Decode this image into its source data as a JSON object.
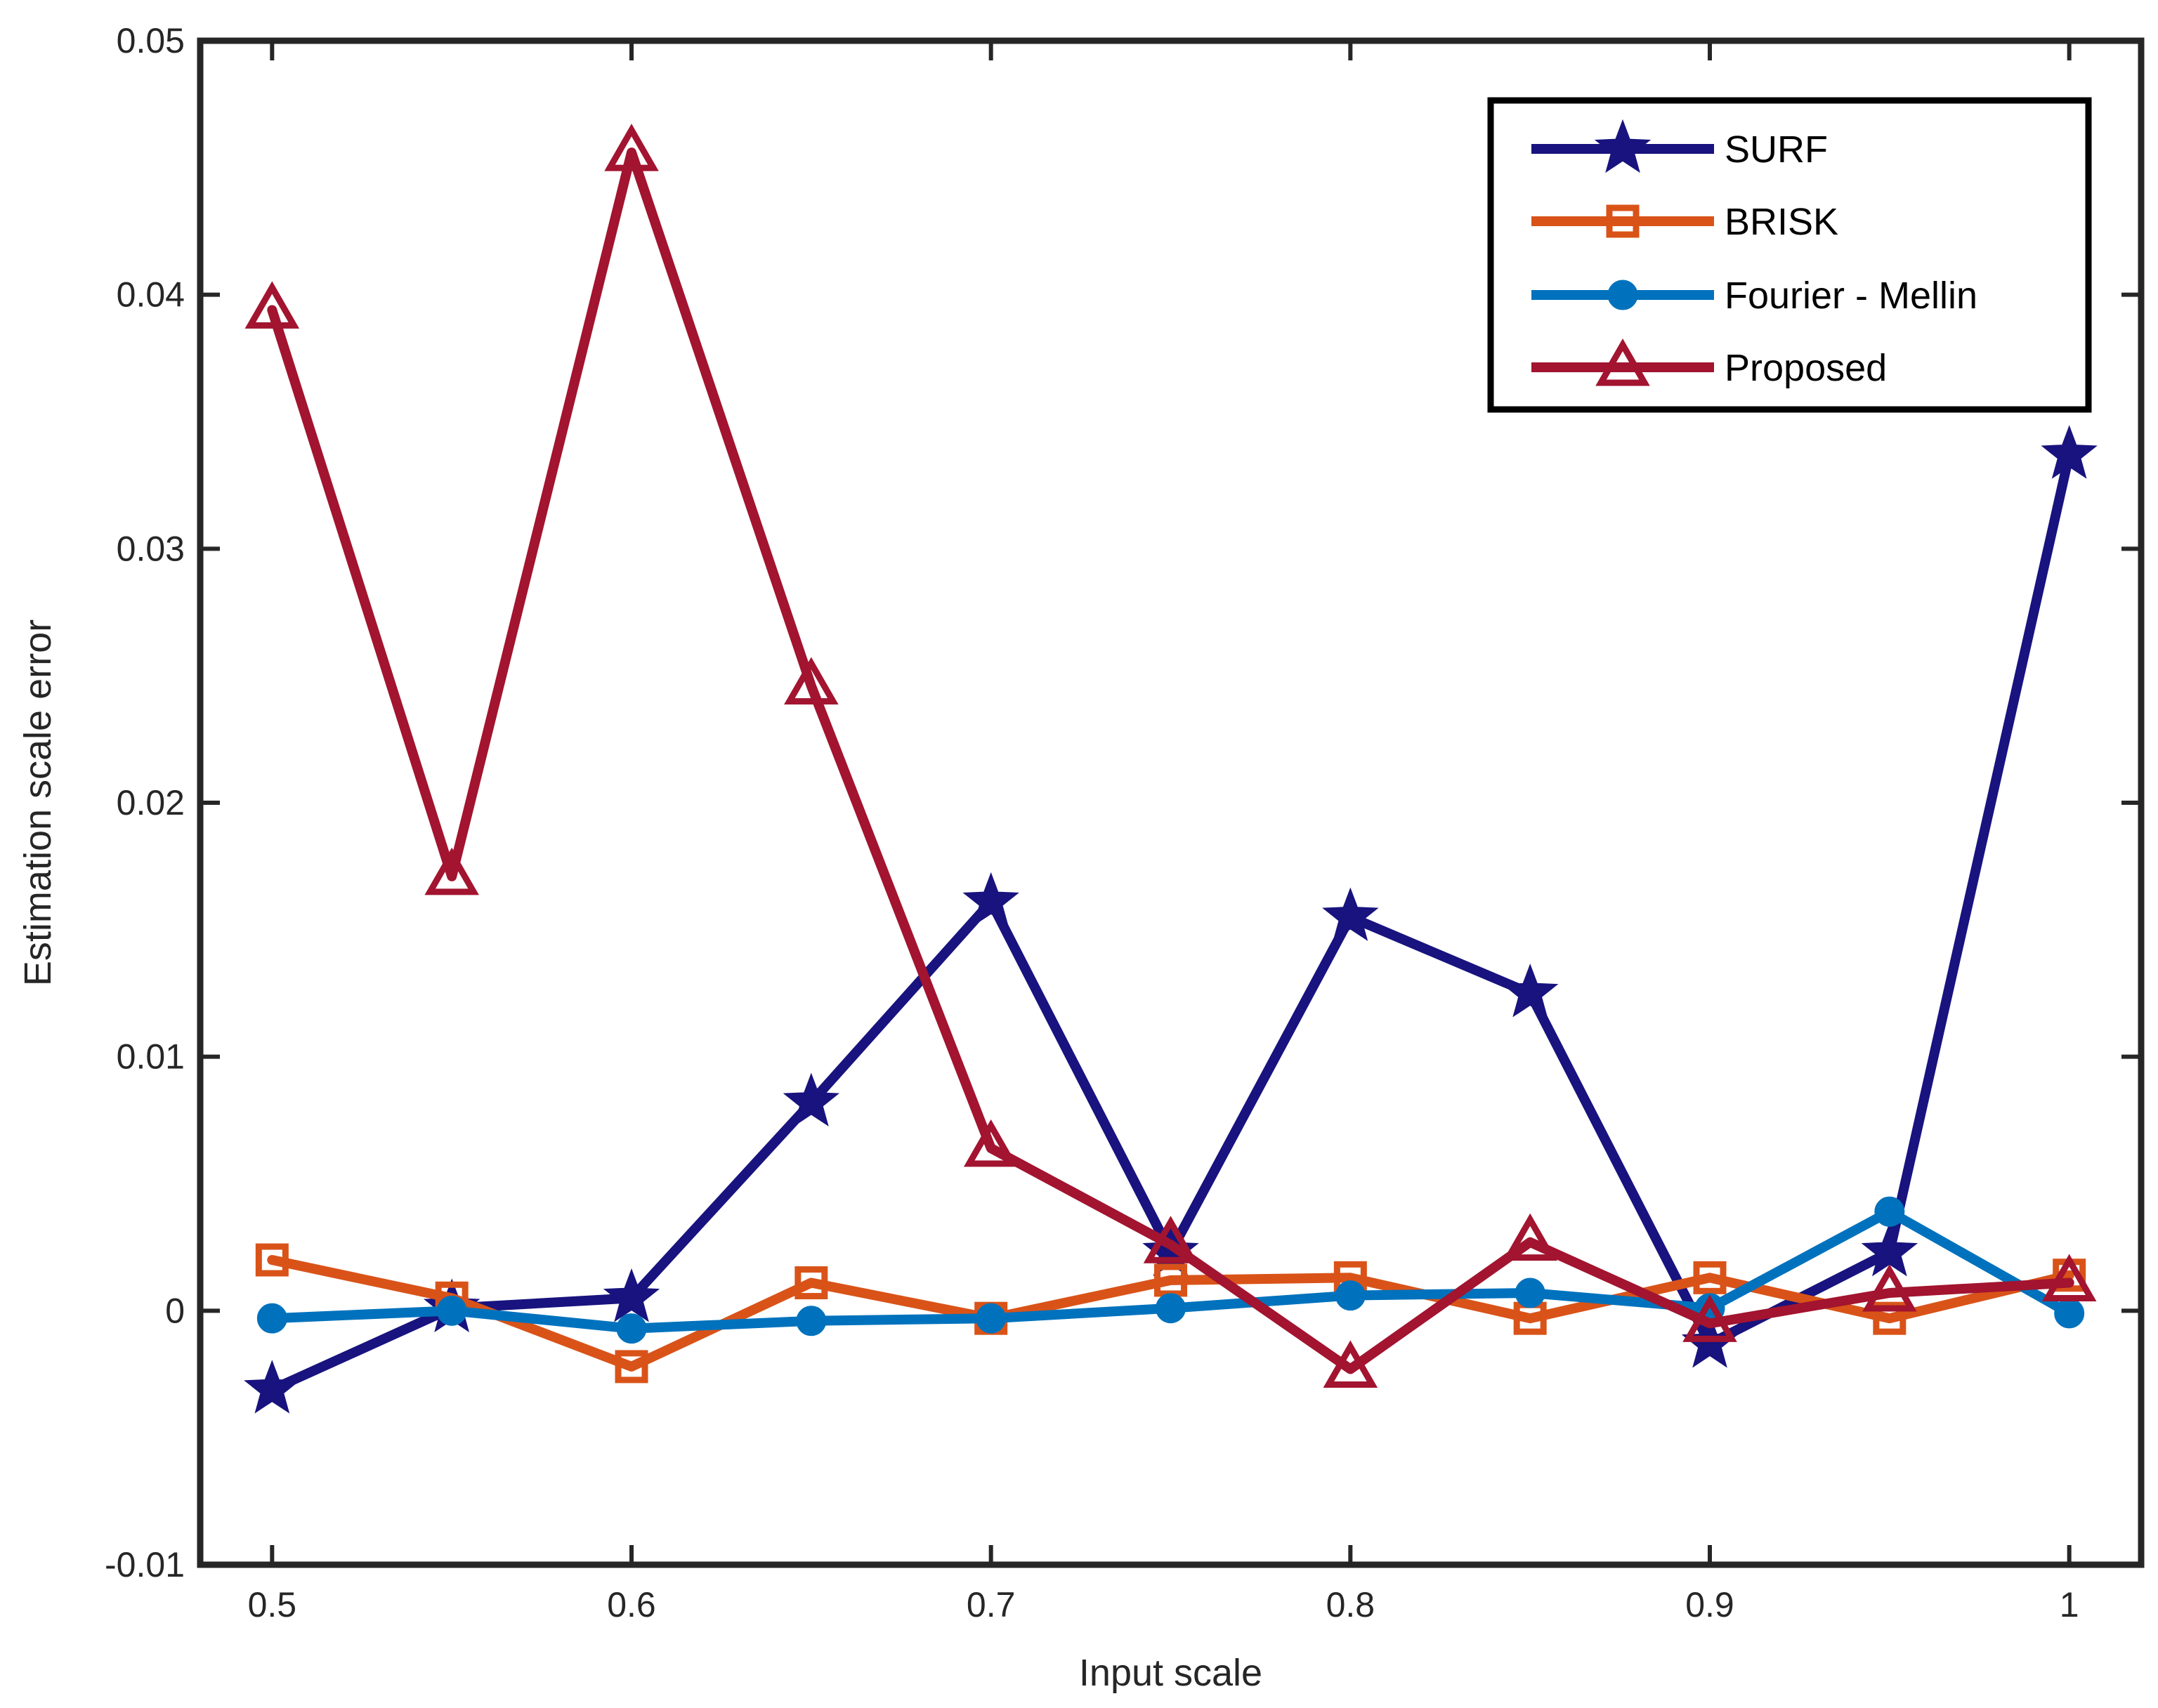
{
  "chart_data": {
    "type": "line",
    "title": "",
    "xlabel": "Input scale",
    "ylabel": "Estimation scale error",
    "xlim": [
      0.48,
      1.02
    ],
    "ylim": [
      -0.01,
      0.05
    ],
    "xticks": [
      0.5,
      0.6,
      0.7,
      0.8,
      0.9,
      1.0
    ],
    "xtick_labels": [
      "0.5",
      "0.6",
      "0.7",
      "0.8",
      "0.9",
      "1"
    ],
    "yticks": [
      -0.01,
      0,
      0.01,
      0.02,
      0.03,
      0.04,
      0.05
    ],
    "ytick_labels": [
      "-0.01",
      "0",
      "0.01",
      "0.02",
      "0.03",
      "0.04",
      "0.05"
    ],
    "grid": false,
    "legend_position": "top-right",
    "x": [
      0.5,
      0.55,
      0.6,
      0.65,
      0.7,
      0.75,
      0.8,
      0.85,
      0.9,
      0.95,
      1.0
    ],
    "series": [
      {
        "name": "SURF",
        "marker": "star",
        "color": "#18137e",
        "values": [
          -0.0031,
          0.0001,
          0.0005,
          0.0082,
          0.0161,
          0.0023,
          0.0155,
          0.0125,
          -0.0013,
          0.0023,
          0.0337
        ]
      },
      {
        "name": "BRISK",
        "marker": "square",
        "color": "#d95319",
        "values": [
          0.002,
          0.0005,
          -0.0022,
          0.0011,
          -0.0003,
          0.0012,
          0.0013,
          -0.0003,
          0.0013,
          -0.0003,
          0.0014
        ]
      },
      {
        "name": "Fourier - Mellin",
        "marker": "circle",
        "color": "#0072bd",
        "values": [
          -0.0003,
          0.0,
          -0.0007,
          -0.0004,
          -0.0003,
          0.0001,
          0.0006,
          0.0007,
          0.0001,
          0.0039,
          -0.0001
        ]
      },
      {
        "name": "Proposed",
        "marker": "triangle",
        "color": "#a2142f",
        "values": [
          0.0394,
          0.0171,
          0.0456,
          0.0246,
          0.0064,
          0.0026,
          -0.0023,
          0.0027,
          -0.0005,
          0.0007,
          0.0011
        ]
      }
    ]
  }
}
